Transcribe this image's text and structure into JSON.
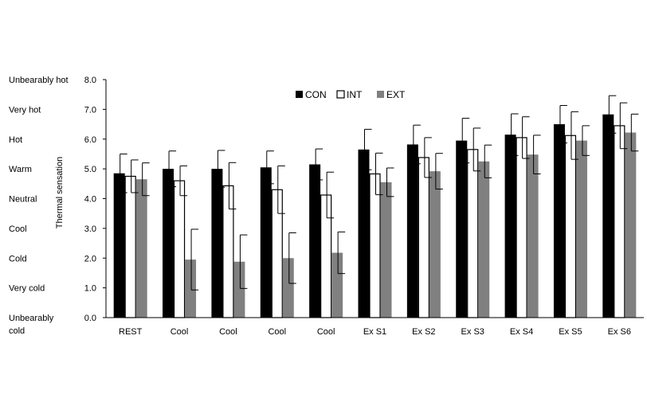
{
  "chart_data": {
    "type": "bar",
    "title": "",
    "xlabel": "",
    "ylabel": "Thermal sensation",
    "ylim": [
      0,
      8
    ],
    "yticks": [
      "0.0",
      "1.0",
      "2.0",
      "3.0",
      "4.0",
      "5.0",
      "6.0",
      "7.0",
      "8.0"
    ],
    "sensation_scale": [
      {
        "value": 8,
        "label": "Unbearably hot"
      },
      {
        "value": 7,
        "label": "Very hot"
      },
      {
        "value": 6,
        "label": "Hot"
      },
      {
        "value": 5,
        "label": "Warm"
      },
      {
        "value": 4,
        "label": "Neutral"
      },
      {
        "value": 3,
        "label": "Cool"
      },
      {
        "value": 2,
        "label": "Cold"
      },
      {
        "value": 1,
        "label": "Very cold"
      },
      {
        "value": 0,
        "label": "Unbearably cold",
        "lines": [
          "Unbearably",
          "cold"
        ]
      }
    ],
    "categories": [
      "REST",
      "Cool",
      "Cool",
      "Cool",
      "Cool",
      "Ex S1",
      "Ex S2",
      "Ex S3",
      "Ex S4",
      "Ex S5",
      "Ex S6"
    ],
    "series": [
      {
        "name": "CON",
        "color": "#000000",
        "style": "solid",
        "values": [
          4.85,
          5.0,
          5.0,
          5.05,
          5.15,
          5.65,
          5.82,
          5.95,
          6.15,
          6.5,
          6.83
        ],
        "errors": [
          0.65,
          0.6,
          0.62,
          0.55,
          0.52,
          0.68,
          0.65,
          0.75,
          0.7,
          0.63,
          0.63
        ]
      },
      {
        "name": "INT",
        "color": "#ffffff",
        "style": "outline",
        "values": [
          4.75,
          4.6,
          4.43,
          4.3,
          4.12,
          4.83,
          5.38,
          5.65,
          6.05,
          6.12,
          6.45
        ],
        "errors": [
          0.55,
          0.5,
          0.78,
          0.8,
          0.77,
          0.7,
          0.67,
          0.72,
          0.7,
          0.8,
          0.77
        ]
      },
      {
        "name": "EXT",
        "color": "#808080",
        "style": "solid",
        "values": [
          4.65,
          1.95,
          1.88,
          2.0,
          2.18,
          4.55,
          4.92,
          5.25,
          5.48,
          5.95,
          6.22
        ],
        "errors": [
          0.55,
          1.02,
          0.9,
          0.85,
          0.7,
          0.48,
          0.6,
          0.55,
          0.65,
          0.5,
          0.62
        ]
      }
    ],
    "grid": false,
    "legend_position": "top-center"
  }
}
